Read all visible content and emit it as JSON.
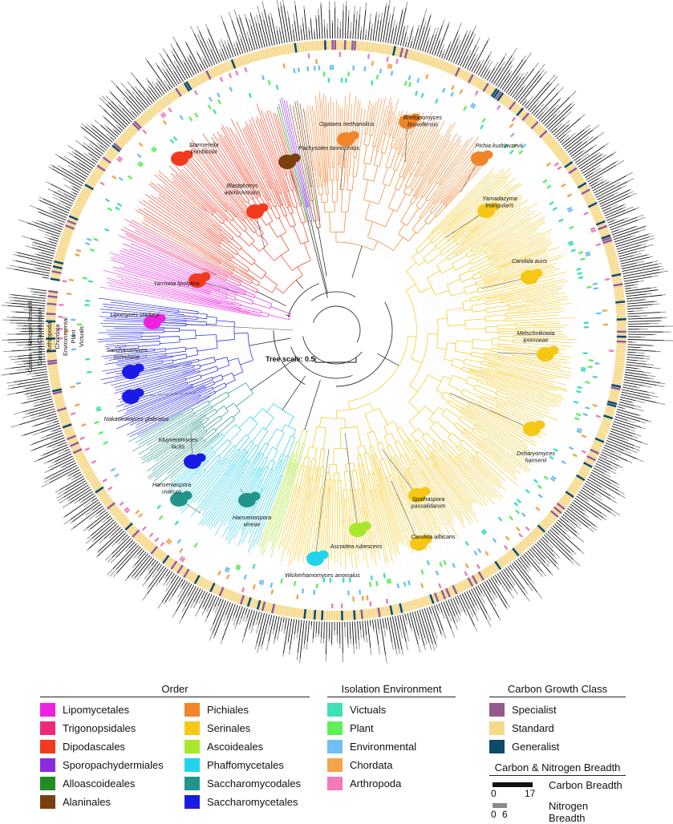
{
  "colors": {
    "orders": {
      "Lipomycetales": "#ee22dd",
      "Trigonopsidales": "#f0287a",
      "Dipodascales": "#f23a1e",
      "Sporopachydermiales": "#8a2be2",
      "Alloascoideales": "#228b22",
      "Alaninales": "#7a3f0c",
      "Pichiales": "#f0852a",
      "Serinales": "#f7c716",
      "Ascoideales": "#a8e82a",
      "Phaffomycetales": "#22d3ee",
      "Saccharomycodales": "#21958a",
      "Saccharomycetales": "#1a1ae6"
    },
    "environments": {
      "Victuals": "#40e0b8",
      "Plant": "#5ef05a",
      "Environmental": "#6ec0f2",
      "Chordata": "#f2a44a",
      "Arthropoda": "#f27ab8"
    },
    "growth": {
      "Specialist": "#945a8e",
      "Standard": "#f7d98a",
      "Generalist": "#0c4a66"
    },
    "carbon_breadth_bar": "#111111",
    "nitrogen_breadth_bar": "#888888"
  },
  "tree": {
    "scale_label": "Tree scale: 0.5",
    "ring_labels": [
      "Carbon + Nitrogen Breadth",
      "Carbon Classification",
      "Arthropoda",
      "Chordata",
      "Environmental",
      "Plant",
      "Victuals"
    ],
    "tips": [
      {
        "label": "Starmerella bombicola",
        "lines": [
          "Starmerella",
          "bombicola"
        ],
        "order": "Dipodascales",
        "icon": "budding-yeast-icon"
      },
      {
        "label": "Pachysolen tannophilus",
        "lines": [
          "Pachysolen tannophilus"
        ],
        "order": "Alaninales",
        "icon": "budding-yeast-icon"
      },
      {
        "label": "Ogataea methanolica",
        "lines": [
          "Ogataea methanolica"
        ],
        "order": "Pichiales",
        "icon": "budding-yeast-icon"
      },
      {
        "label": "Brettanomyces bruxellensis",
        "lines": [
          "Brettanomyces",
          "bruxellensis"
        ],
        "order": "Pichiales",
        "icon": "budding-yeast-icon"
      },
      {
        "label": "Pichia kudriavzevii",
        "lines": [
          "Pichia kudriavzevii"
        ],
        "order": "Pichiales",
        "icon": "budding-yeast-icon"
      },
      {
        "label": "Blastobotrys adeninivorans",
        "lines": [
          "Blastobotrys",
          "adeninivorans"
        ],
        "order": "Dipodascales",
        "icon": "budding-yeast-icon"
      },
      {
        "label": "Yamadazyma triangularis",
        "lines": [
          "Yamadazyma",
          "triangularis"
        ],
        "order": "Serinales",
        "icon": "budding-yeast-icon"
      },
      {
        "label": "Candida auris",
        "lines": [
          "Candida auris"
        ],
        "order": "Serinales",
        "icon": "budding-yeast-icon"
      },
      {
        "label": "Yarrowia lipolytica",
        "lines": [
          "Yarrowia lipolytica"
        ],
        "order": "Dipodascales",
        "icon": "budding-yeast-icon"
      },
      {
        "label": "Lipomyces starkeyi",
        "lines": [
          "Lipomyces starkeyi"
        ],
        "order": "Lipomycetales",
        "icon": "budding-yeast-icon"
      },
      {
        "label": "Metschnikowia ipomoeae",
        "lines": [
          "Metschnikowia",
          "ipomoeae"
        ],
        "order": "Serinales",
        "icon": "budding-yeast-icon"
      },
      {
        "label": "Saccharomyces cerevisiae",
        "lines": [
          "Saccharomyces",
          "cerevisiae"
        ],
        "order": "Saccharomycetales",
        "icon": "budding-yeast-icon"
      },
      {
        "label": "Nakaseomyces glabratus",
        "lines": [
          "Nakaseomyces glabratus"
        ],
        "order": "Saccharomycetales",
        "icon": "budding-yeast-icon"
      },
      {
        "label": "Kluyveromyces lactis",
        "lines": [
          "Kluyveromyces",
          "lactis"
        ],
        "order": "Saccharomycetales",
        "icon": "budding-yeast-icon"
      },
      {
        "label": "Debaryomyces hansenii",
        "lines": [
          "Debaryomyces",
          "hansenii"
        ],
        "order": "Serinales",
        "icon": "budding-yeast-icon"
      },
      {
        "label": "Hanseniaspora uvarum",
        "lines": [
          "Hanseniaspora",
          "uvarum"
        ],
        "order": "Saccharomycodales",
        "icon": "budding-yeast-icon"
      },
      {
        "label": "Hanseniaspora vineae",
        "lines": [
          "Hanseniaspora",
          "vineae"
        ],
        "order": "Saccharomycodales",
        "icon": "budding-yeast-icon"
      },
      {
        "label": "Spathaspora passalidarum",
        "lines": [
          "Spathaspora",
          "passalidarum"
        ],
        "order": "Serinales",
        "icon": "budding-yeast-icon"
      },
      {
        "label": "Ascoidea rubescens",
        "lines": [
          "Ascoidea rubescens"
        ],
        "order": "Ascoideales",
        "icon": "budding-yeast-icon"
      },
      {
        "label": "Candida albicans",
        "lines": [
          "Candida albicans"
        ],
        "order": "Serinales",
        "icon": "budding-yeast-icon"
      },
      {
        "label": "Wickerhamomyces anomalus",
        "lines": [
          "Wickerhamomyces anomalus"
        ],
        "order": "Phaffomycetales",
        "icon": "budding-yeast-icon"
      }
    ]
  },
  "legend": {
    "order": {
      "title": "Order",
      "items": [
        "Lipomycetales",
        "Pichiales",
        "Trigonopsidales",
        "Serinales",
        "Dipodascales",
        "Ascoideales",
        "Sporopachydermiales",
        "Phaffomycetales",
        "Alloascoideales",
        "Saccharomycodales",
        "Alaninales",
        "Saccharomycetales"
      ]
    },
    "isolation": {
      "title": "Isolation Environment",
      "items": [
        "Victuals",
        "Plant",
        "Environmental",
        "Chordata",
        "Arthropoda"
      ]
    },
    "growth": {
      "title": "Carbon Growth Class",
      "items": [
        "Specialist",
        "Standard",
        "Generalist"
      ]
    },
    "breadth": {
      "title": "Carbon & Nitrogen Breadth",
      "carbon": {
        "label": "Carbon Breadth",
        "min": "0",
        "max": "17"
      },
      "nitrogen": {
        "label": "Nitrogen Breadth",
        "min": "0",
        "max": "6"
      }
    }
  }
}
